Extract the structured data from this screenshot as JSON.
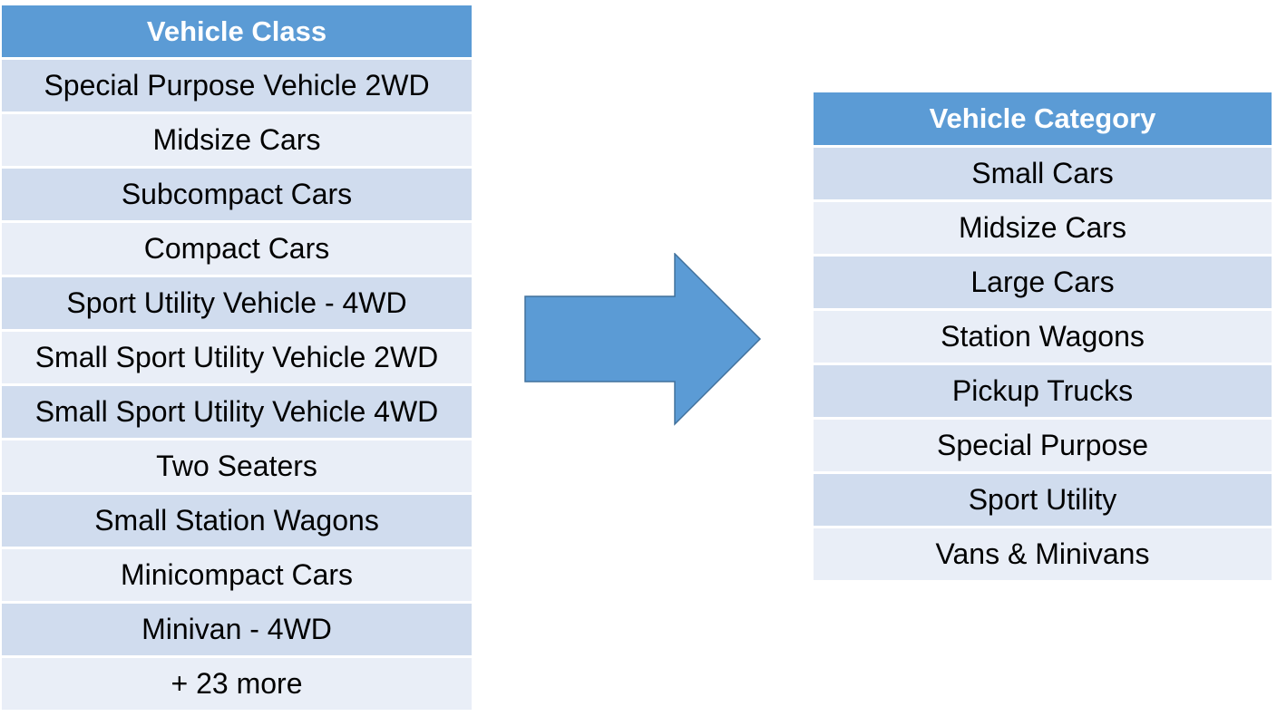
{
  "left_table": {
    "header": "Vehicle Class",
    "rows": [
      "Special Purpose Vehicle 2WD",
      "Midsize Cars",
      "Subcompact Cars",
      "Compact Cars",
      "Sport Utility Vehicle - 4WD",
      "Small Sport Utility Vehicle 2WD",
      "Small Sport Utility Vehicle 4WD",
      "Two Seaters",
      "Small Station Wagons",
      "Minicompact Cars",
      "Minivan - 4WD",
      "+ 23 more"
    ]
  },
  "right_table": {
    "header": "Vehicle Category",
    "rows": [
      "Small Cars",
      "Midsize Cars",
      "Large Cars",
      "Station Wagons",
      "Pickup Trucks",
      "Special Purpose",
      "Sport Utility",
      "Vans & Minivans"
    ]
  },
  "colors": {
    "header_fill": "#5b9bd5",
    "row_odd_fill": "#d0dcee",
    "row_even_fill": "#e9eef7",
    "arrow_fill": "#5b9bd5",
    "arrow_stroke": "#41719c"
  }
}
